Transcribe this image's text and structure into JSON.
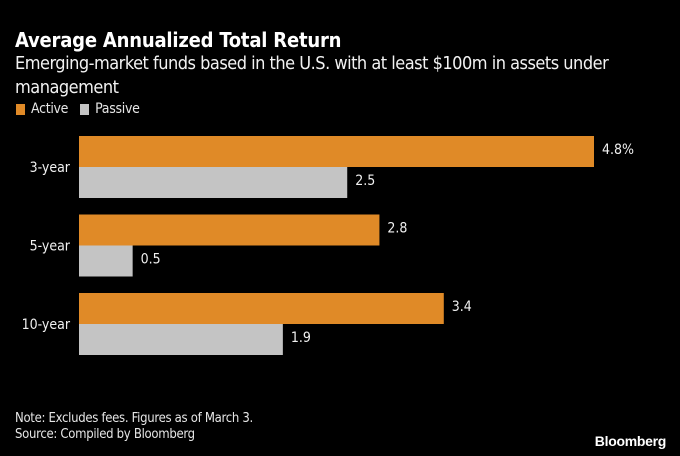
{
  "chart_data": {
    "type": "bar",
    "orientation": "horizontal",
    "title": "Average Annualized Total Return",
    "subtitle": "Emerging-market funds based in the U.S. with at least $100m in assets under management",
    "categories": [
      "3-year",
      "5-year",
      "10-year"
    ],
    "series": [
      {
        "name": "Active",
        "color": "#e08a27",
        "values": [
          4.8,
          2.8,
          3.4
        ],
        "labels": [
          "4.8%",
          "2.8",
          "3.4"
        ]
      },
      {
        "name": "Passive",
        "color": "#c4c4c4",
        "values": [
          2.5,
          0.5,
          1.9
        ],
        "labels": [
          "2.5",
          "0.5",
          "1.9"
        ]
      }
    ],
    "xlim": [
      0,
      4.8
    ],
    "xlabel": "",
    "ylabel": "",
    "grid": false,
    "legend": "top-left",
    "note": "Note: Excludes fees. Figures as of March 3.",
    "source": "Source: Compiled by Bloomberg",
    "brand": "Bloomberg"
  }
}
